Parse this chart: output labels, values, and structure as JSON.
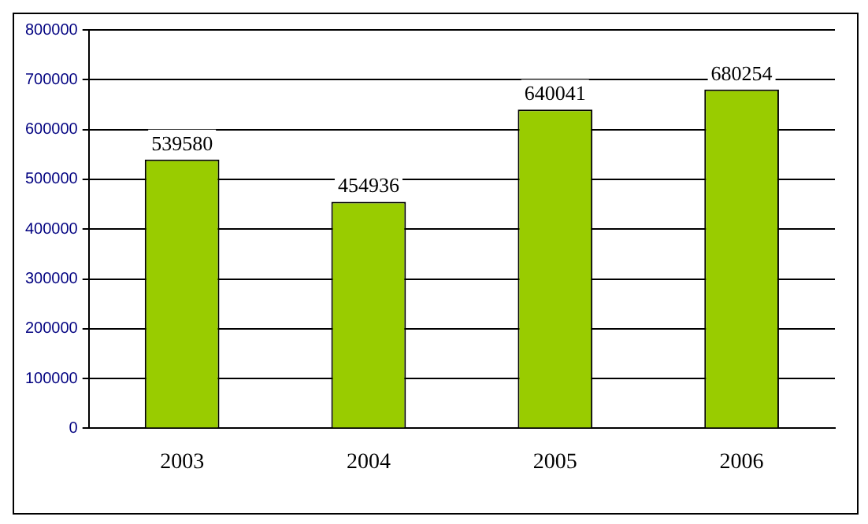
{
  "chart_data": {
    "type": "bar",
    "categories": [
      "2003",
      "2004",
      "2005",
      "2006"
    ],
    "values": [
      539580,
      454936,
      640041,
      680254
    ],
    "color": "#99cc00",
    "ylim": [
      0,
      800000
    ],
    "yticks": [
      0,
      100000,
      200000,
      300000,
      400000,
      500000,
      600000,
      700000,
      800000
    ],
    "grid": "y",
    "data_labels": true
  }
}
